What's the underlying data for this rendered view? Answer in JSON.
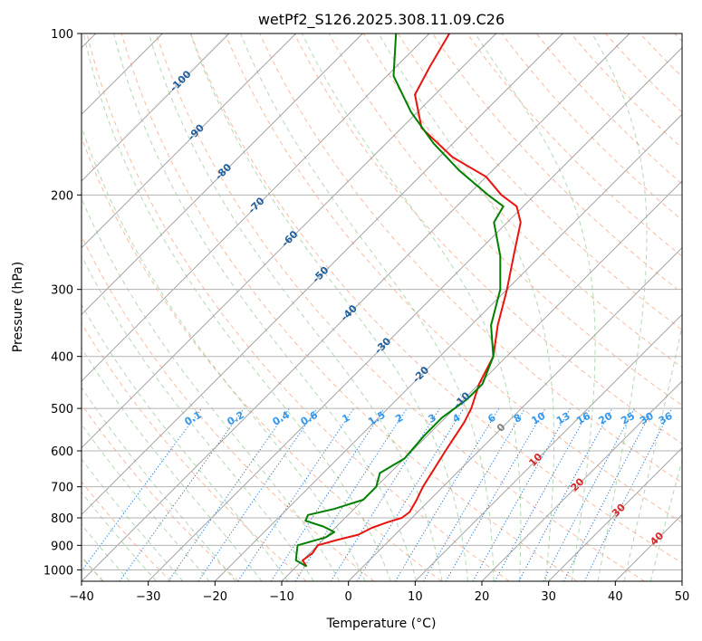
{
  "chart_data": {
    "type": "line",
    "title": "wetPf2_S126.2025.308.11.09.C26",
    "xlabel": "Temperature (°C)",
    "ylabel": "Pressure (hPa)",
    "xlim": [
      -40,
      50
    ],
    "ylim": [
      1050,
      100
    ],
    "x_ticks": [
      -40,
      -30,
      -20,
      -10,
      0,
      10,
      20,
      30,
      40,
      50
    ],
    "y_ticks": [
      1000,
      900,
      800,
      700,
      600,
      500,
      400,
      300,
      200,
      100
    ],
    "series": [
      {
        "name": "temperature",
        "color": "#e8140e",
        "points": [
          [
            -8.5,
            985
          ],
          [
            -10,
            960
          ],
          [
            -9.6,
            930
          ],
          [
            -10,
            900
          ],
          [
            -8,
            880
          ],
          [
            -5.5,
            860
          ],
          [
            -4.5,
            835
          ],
          [
            -3,
            815
          ],
          [
            -1.5,
            800
          ],
          [
            -1.2,
            780
          ],
          [
            -2,
            740
          ],
          [
            -3,
            700
          ],
          [
            -5,
            600
          ],
          [
            -6.5,
            530
          ],
          [
            -7.5,
            500
          ],
          [
            -10,
            450
          ],
          [
            -12,
            400
          ],
          [
            -16,
            350
          ],
          [
            -20,
            300
          ],
          [
            -24,
            260
          ],
          [
            -28,
            225
          ],
          [
            -31,
            210
          ],
          [
            -35,
            200
          ],
          [
            -40,
            185
          ],
          [
            -48,
            170
          ],
          [
            -57,
            150
          ],
          [
            -63,
            130
          ],
          [
            -65,
            115
          ],
          [
            -67,
            100
          ]
        ]
      },
      {
        "name": "dewpoint",
        "color": "#008000",
        "points": [
          [
            -8.5,
            985
          ],
          [
            -11,
            960
          ],
          [
            -12,
            930
          ],
          [
            -13,
            900
          ],
          [
            -10,
            870
          ],
          [
            -9.5,
            850
          ],
          [
            -12,
            830
          ],
          [
            -15.5,
            810
          ],
          [
            -16,
            790
          ],
          [
            -13,
            770
          ],
          [
            -10,
            740
          ],
          [
            -10,
            700
          ],
          [
            -11.5,
            660
          ],
          [
            -10,
            620
          ],
          [
            -10.5,
            560
          ],
          [
            -10.5,
            520
          ],
          [
            -9.5,
            480
          ],
          [
            -9.5,
            450
          ],
          [
            -12,
            400
          ],
          [
            -17,
            350
          ],
          [
            -21,
            300
          ],
          [
            -26,
            260
          ],
          [
            -32,
            225
          ],
          [
            -33,
            210
          ],
          [
            -37,
            200
          ],
          [
            -45,
            180
          ],
          [
            -53,
            160
          ],
          [
            -61,
            140
          ],
          [
            -69,
            120
          ],
          [
            -75,
            100
          ]
        ]
      }
    ],
    "dry_adiabat_labels": [
      "-100",
      "-90",
      "-80",
      "-70",
      "-60",
      "-50",
      "-40",
      "-30",
      "-20",
      "-10",
      "0",
      "10",
      "20",
      "30",
      "40"
    ],
    "mixing_ratio_labels": [
      "0.1",
      "0.2",
      "0.4",
      "0.6",
      "1",
      "1.5",
      "2",
      "3",
      "4",
      "6",
      "8",
      "10",
      "13",
      "16",
      "20",
      "25",
      "30",
      "36"
    ]
  }
}
